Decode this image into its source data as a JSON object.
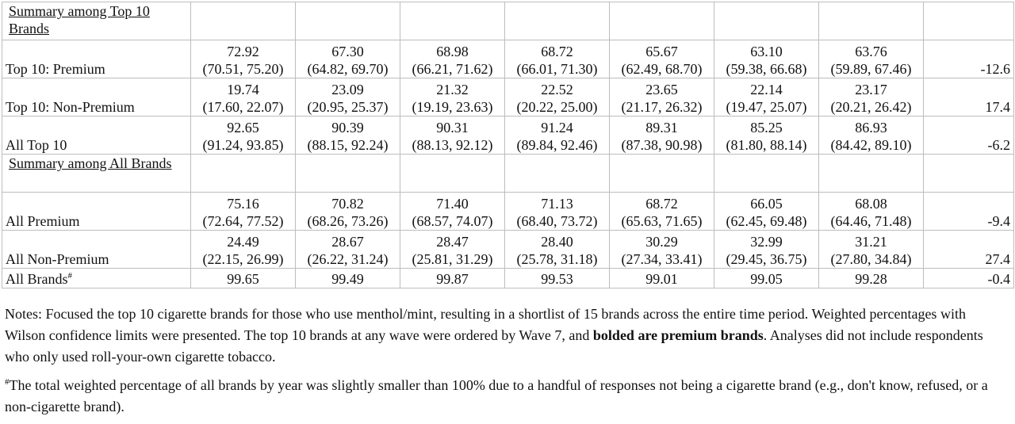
{
  "table": {
    "rows": [
      {
        "type": "section",
        "label": "Summary among Top 10 Brands"
      },
      {
        "type": "data",
        "label": "Top 10: Premium",
        "values": [
          [
            "72.92",
            "(70.51, 75.20)"
          ],
          [
            "67.30",
            "(64.82, 69.70)"
          ],
          [
            "68.98",
            "(66.21, 71.62)"
          ],
          [
            "68.72",
            "(66.01, 71.30)"
          ],
          [
            "65.67",
            "(62.49, 68.70)"
          ],
          [
            "63.10",
            "(59.38, 66.68)"
          ],
          [
            "63.76",
            "(59.89, 67.46)"
          ]
        ],
        "change": "-12.6"
      },
      {
        "type": "data",
        "label": "Top 10: Non-Premium",
        "values": [
          [
            "19.74",
            "(17.60, 22.07)"
          ],
          [
            "23.09",
            "(20.95, 25.37)"
          ],
          [
            "21.32",
            "(19.19, 23.63)"
          ],
          [
            "22.52",
            "(20.22, 25.00)"
          ],
          [
            "23.65",
            "(21.17, 26.32)"
          ],
          [
            "22.14",
            "(19.47, 25.07)"
          ],
          [
            "23.17",
            "(20.21, 26.42)"
          ]
        ],
        "change": "17.4"
      },
      {
        "type": "data",
        "label": "All Top 10",
        "values": [
          [
            "92.65",
            "(91.24, 93.85)"
          ],
          [
            "90.39",
            "(88.15, 92.24)"
          ],
          [
            "90.31",
            "(88.13, 92.12)"
          ],
          [
            "91.24",
            "(89.84, 92.46)"
          ],
          [
            "89.31",
            "(87.38, 90.98)"
          ],
          [
            "85.25",
            "(81.80, 88.14)"
          ],
          [
            "86.93",
            "(84.42, 89.10)"
          ]
        ],
        "change": "-6.2"
      },
      {
        "type": "section",
        "label": "Summary among All Brands"
      },
      {
        "type": "data",
        "label": "All Premium",
        "values": [
          [
            "75.16",
            "(72.64, 77.52)"
          ],
          [
            "70.82",
            "(68.26, 73.26)"
          ],
          [
            "71.40",
            "(68.57, 74.07)"
          ],
          [
            "71.13",
            "(68.40, 73.72)"
          ],
          [
            "68.72",
            "(65.63, 71.65)"
          ],
          [
            "66.05",
            "(62.45, 69.48)"
          ],
          [
            "68.08",
            "(64.46, 71.48)"
          ]
        ],
        "change": "-9.4"
      },
      {
        "type": "data",
        "label": "All Non-Premium",
        "values": [
          [
            "24.49",
            "(22.15, 26.99)"
          ],
          [
            "28.67",
            "(26.22, 31.24)"
          ],
          [
            "28.47",
            "(25.81, 31.29)"
          ],
          [
            "28.40",
            "(25.78, 31.18)"
          ],
          [
            "30.29",
            "(27.34, 33.41)"
          ],
          [
            "32.99",
            "(29.45, 36.75)"
          ],
          [
            "31.21",
            "(27.80, 34.84)"
          ]
        ],
        "change": "27.4"
      },
      {
        "type": "single",
        "label": "All Brands",
        "label_mark": "#",
        "values": [
          "99.65",
          "99.49",
          "99.87",
          "99.53",
          "99.01",
          "99.05",
          "99.28"
        ],
        "change": "-0.4"
      }
    ]
  },
  "notes": {
    "p1_a": "Notes: Focused the top 10 cigarette brands for those who use menthol/mint, resulting in a shortlist of 15 brands across the entire time period. Weighted percentages with Wilson confidence limits were presented. The top 10 brands at any wave were ordered by Wave 7, and ",
    "p1_bold": "bolded are premium brands",
    "p1_b": ". Analyses did not include respondents who only used roll-your-own cigarette tobacco.",
    "fn_mark": "#",
    "fn_text": "The total weighted percentage of all brands by year was slightly smaller than 100% due to a handful of responses not being a cigarette brand (e.g., don't know, refused, or a non-cigarette brand)."
  }
}
